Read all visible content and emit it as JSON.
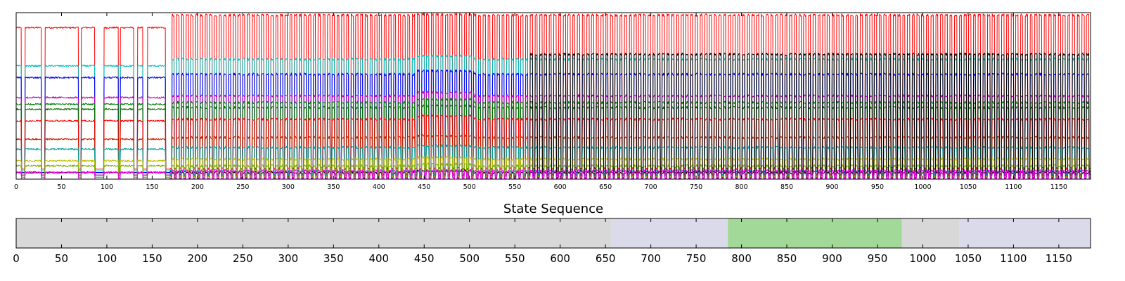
{
  "chart_data": [
    {
      "type": "line",
      "title": "",
      "xlabel": "",
      "ylabel": "",
      "xlim": [
        0,
        1185
      ],
      "ylim": [
        0,
        1
      ],
      "grid": false,
      "legend": "none",
      "x_ticks": [
        "0",
        "50",
        "100",
        "150",
        "200",
        "250",
        "300",
        "350",
        "400",
        "450",
        "500",
        "550",
        "600",
        "650",
        "700",
        "750",
        "800",
        "850",
        "900",
        "950",
        "1000",
        "1050",
        "1100",
        "1150"
      ],
      "x_tick_values": [
        0,
        50,
        100,
        150,
        200,
        250,
        300,
        350,
        400,
        450,
        500,
        550,
        600,
        650,
        700,
        750,
        800,
        850,
        900,
        950,
        1000,
        1050,
        1100,
        1150
      ],
      "gaps": [
        [
          6,
          10
        ],
        [
          28,
          32
        ],
        [
          69,
          72
        ],
        [
          87,
          97
        ],
        [
          113,
          115
        ],
        [
          130,
          134
        ],
        [
          140,
          145
        ],
        [
          165,
          170
        ]
      ],
      "dense_start": 170,
      "elevated_segment": [
        442,
        505
      ],
      "black_series_start": 565,
      "series": [
        {
          "color": "#ff0000",
          "level": 0.985,
          "base": 0.06,
          "plateau": 0.99,
          "first_drop": 0.91
        },
        {
          "color": "#00bfbf",
          "level": 0.72,
          "base": 0.05,
          "plateau": 0.74,
          "first_drop": 0.68
        },
        {
          "color": "#0000ff",
          "level": 0.63,
          "base": 0.04,
          "plateau": 0.65,
          "first_drop": 0.61
        },
        {
          "color": "#bf00bf",
          "level": 0.5,
          "base": 0.03,
          "plateau": 0.52,
          "first_drop": 0.49
        },
        {
          "color": "#008000",
          "level": 0.46,
          "base": 0.02,
          "plateau": 0.48,
          "first_drop": 0.45
        },
        {
          "color": "#007000",
          "level": 0.43,
          "base": 0.02,
          "plateau": 0.44,
          "first_drop": 0.42
        },
        {
          "color": "#ff0000",
          "level": 0.36,
          "base": 0.02,
          "plateau": 0.38,
          "first_drop": 0.35
        },
        {
          "color": "#cc2200",
          "level": 0.25,
          "base": 0.02,
          "plateau": 0.26,
          "first_drop": 0.24
        },
        {
          "color": "#00a0a0",
          "level": 0.19,
          "base": 0.02,
          "plateau": 0.2,
          "first_drop": 0.18
        },
        {
          "color": "#bfbf00",
          "level": 0.12,
          "base": 0.01,
          "plateau": 0.13,
          "first_drop": 0.11
        },
        {
          "color": "#80b000",
          "level": 0.08,
          "base": 0.01,
          "plateau": 0.09,
          "first_drop": 0.08
        },
        {
          "color": "#000000",
          "level": 0.04,
          "base": 0.0,
          "plateau": 0.05,
          "first_drop": 0.04
        },
        {
          "color": "#000000",
          "level": 0.75,
          "base": 0.0,
          "plateau": 0.75,
          "first_drop": 0.0
        },
        {
          "color": "#ff00ff",
          "level": 0.05,
          "base": 0.0,
          "plateau": 0.05,
          "first_drop": 0.04
        }
      ]
    },
    {
      "type": "timeline",
      "title": "State Sequence",
      "xlim": [
        0,
        1185
      ],
      "x_ticks": [
        "0",
        "50",
        "100",
        "150",
        "200",
        "250",
        "300",
        "350",
        "400",
        "450",
        "500",
        "550",
        "600",
        "650",
        "700",
        "750",
        "800",
        "850",
        "900",
        "950",
        "1000",
        "1050",
        "1100",
        "1150"
      ],
      "x_tick_values": [
        0,
        50,
        100,
        150,
        200,
        250,
        300,
        350,
        400,
        450,
        500,
        550,
        600,
        650,
        700,
        750,
        800,
        850,
        900,
        950,
        1000,
        1050,
        1100,
        1150
      ],
      "segments": [
        {
          "start": 0,
          "end": 656,
          "color": "#d8d8d8"
        },
        {
          "start": 656,
          "end": 785,
          "color": "#dadaea"
        },
        {
          "start": 785,
          "end": 977,
          "color": "#a2d898"
        },
        {
          "start": 977,
          "end": 1040,
          "color": "#d8d8d8"
        },
        {
          "start": 1040,
          "end": 1185,
          "color": "#dadaea"
        }
      ]
    }
  ]
}
